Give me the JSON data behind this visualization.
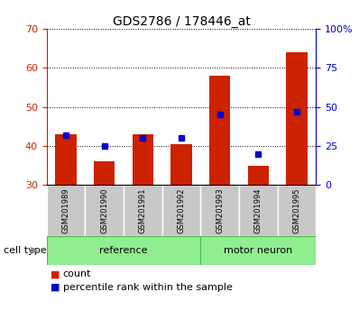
{
  "title": "GDS2786 / 178446_at",
  "categories": [
    "GSM201989",
    "GSM201990",
    "GSM201991",
    "GSM201992",
    "GSM201993",
    "GSM201994",
    "GSM201995"
  ],
  "red_values": [
    43,
    36,
    43,
    40.5,
    58,
    35,
    64
  ],
  "blue_pct_values": [
    32,
    25,
    30,
    30,
    45,
    20,
    47
  ],
  "ylim_left": [
    30,
    70
  ],
  "ylim_right": [
    0,
    100
  ],
  "yticks_left": [
    30,
    40,
    50,
    60,
    70
  ],
  "ytick_labels_right": [
    "0",
    "25",
    "50",
    "75",
    "100%"
  ],
  "bar_color": "#CC2200",
  "dot_color": "#0000CC",
  "bar_width": 0.55,
  "left_axis_color": "#CC2200",
  "right_axis_color": "#0000CC",
  "tick_bg_color": "#C8C8C8",
  "group_color": "#90EE90",
  "group_border_color": "#44BB44",
  "legend_items": [
    "count",
    "percentile rank within the sample"
  ],
  "cell_type_label": "cell type",
  "ref_label": "reference",
  "mn_label": "motor neuron"
}
